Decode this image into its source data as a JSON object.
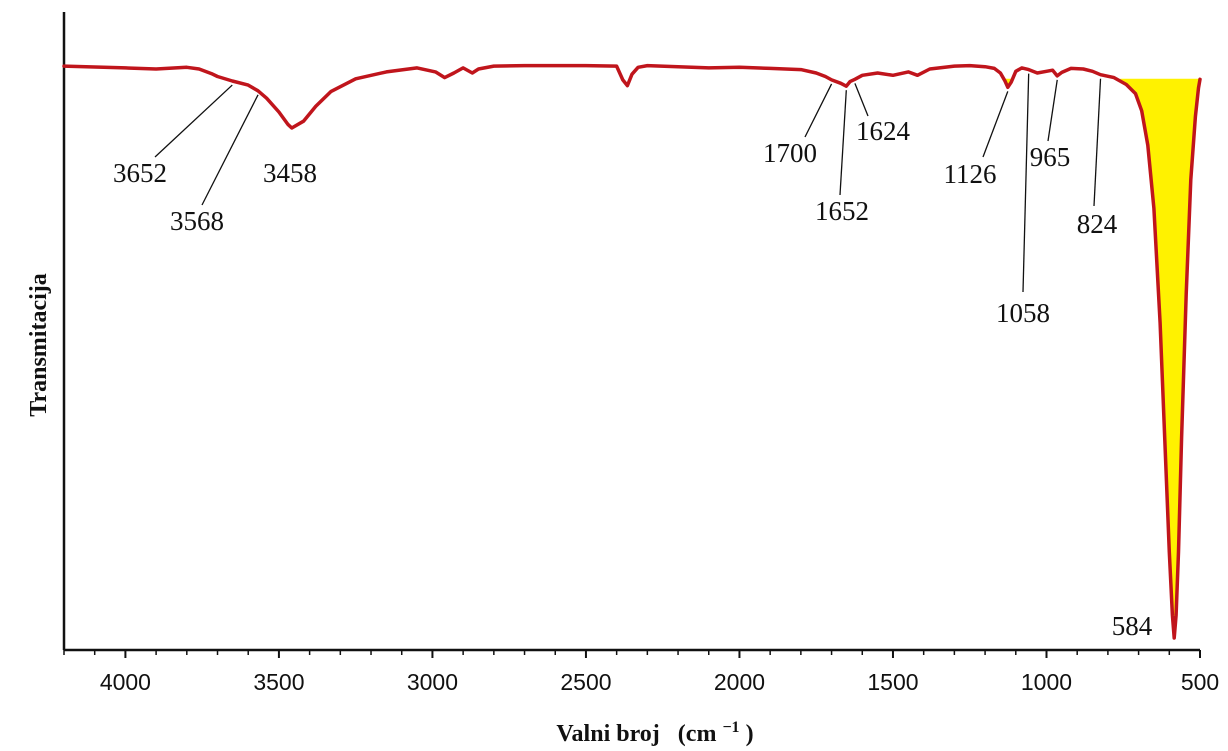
{
  "chart_data": {
    "type": "line",
    "xlabel": "Valni broj",
    "xunit": "(cm",
    "xunit_sup": "−1",
    "xunit_close": ")",
    "ylabel": "Transmitacija",
    "xlim": [
      4200,
      500
    ],
    "x_reversed": true,
    "ylim": [
      0,
      100
    ],
    "x_ticks": [
      "4000",
      "3500",
      "3000",
      "2500",
      "2000",
      "1500",
      "1000",
      "500"
    ],
    "y_ticks_shown": false,
    "grid": false,
    "colors": {
      "line": "#c0151c",
      "fill": "#fff200",
      "axis": "#111111"
    },
    "series": [
      {
        "x": [
          4200,
          4000,
          3900,
          3800,
          3760,
          3720,
          3700,
          3652,
          3600,
          3568,
          3540,
          3500,
          3470,
          3458,
          3420,
          3380,
          3330,
          3250,
          3150,
          3050,
          2990,
          2960,
          2930,
          2900,
          2870,
          2850,
          2800,
          2700,
          2600,
          2500,
          2400,
          2380,
          2365,
          2350,
          2330,
          2300,
          2200,
          2100,
          2000,
          1900,
          1800,
          1750,
          1720,
          1700,
          1670,
          1652,
          1640,
          1624,
          1600,
          1550,
          1500,
          1450,
          1420,
          1380,
          1300,
          1250,
          1200,
          1170,
          1150,
          1135,
          1126,
          1115,
          1100,
          1080,
          1058,
          1030,
          1000,
          980,
          965,
          950,
          920,
          880,
          850,
          824,
          780,
          740,
          710,
          690,
          670,
          650,
          630,
          615,
          600,
          590,
          584,
          578,
          570,
          560,
          545,
          530,
          515,
          505,
          500
        ],
        "y": [
          99.8,
          99.5,
          99.3,
          99.6,
          99.3,
          98.5,
          98.0,
          97.2,
          96.5,
          95.5,
          94.2,
          91.8,
          89.6,
          89.0,
          90.2,
          92.8,
          95.4,
          97.6,
          98.8,
          99.5,
          98.8,
          97.8,
          98.6,
          99.5,
          98.6,
          99.3,
          99.8,
          99.9,
          99.9,
          99.9,
          99.8,
          97.4,
          96.4,
          98.4,
          99.6,
          99.9,
          99.7,
          99.5,
          99.6,
          99.4,
          99.2,
          98.6,
          98.0,
          97.4,
          96.8,
          96.3,
          97.1,
          97.5,
          98.2,
          98.6,
          98.2,
          98.8,
          98.2,
          99.3,
          99.8,
          99.9,
          99.7,
          99.4,
          98.6,
          97.2,
          96.1,
          97.0,
          98.9,
          99.5,
          99.2,
          98.6,
          98.9,
          99.1,
          98.1,
          98.7,
          99.4,
          99.3,
          98.9,
          98.3,
          97.8,
          96.6,
          95.0,
          92.0,
          86.0,
          75.0,
          55.0,
          35.0,
          15.0,
          4.0,
          0.0,
          4.0,
          15.0,
          35.0,
          60.0,
          80.0,
          91.0,
          96.0,
          97.5
        ]
      }
    ],
    "annotations": [
      {
        "label": "3652",
        "x": 3652
      },
      {
        "label": "3568",
        "x": 3568
      },
      {
        "label": "3458",
        "x": 3458
      },
      {
        "label": "1700",
        "x": 1700
      },
      {
        "label": "1652",
        "x": 1652
      },
      {
        "label": "1624",
        "x": 1624
      },
      {
        "label": "1126",
        "x": 1126
      },
      {
        "label": "1058",
        "x": 1058
      },
      {
        "label": "965",
        "x": 965
      },
      {
        "label": "824",
        "x": 824
      },
      {
        "label": "584",
        "x": 584
      }
    ]
  }
}
